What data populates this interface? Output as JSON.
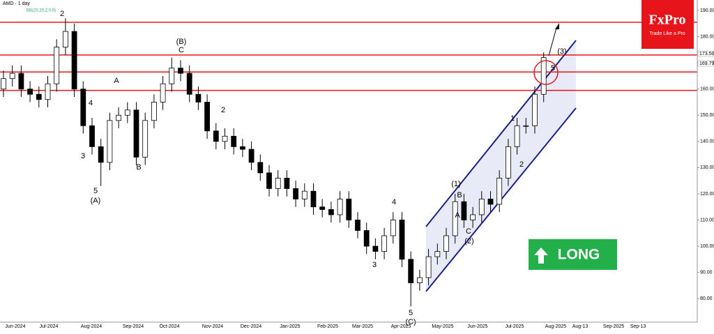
{
  "chart_data": {
    "type": "candlestick",
    "title": "AMD · 1 day",
    "indicator": "BB(20,20,2,0,0)",
    "open": [
      160,
      164,
      166,
      160,
      158,
      156,
      162,
      176,
      182,
      160,
      146,
      138,
      132,
      148,
      150,
      152,
      134,
      148,
      155,
      162,
      168,
      166,
      158,
      155,
      144,
      140,
      142,
      138,
      137,
      132,
      128,
      122,
      126,
      122,
      118,
      121,
      115,
      114,
      112,
      118,
      110,
      106,
      100,
      98,
      104,
      110,
      95,
      86,
      88,
      96,
      98,
      104,
      117,
      110,
      112,
      118,
      116,
      126,
      138,
      146,
      146,
      158
    ],
    "high": [
      167,
      169,
      169,
      163,
      161,
      165,
      179,
      187,
      185,
      163,
      149,
      141,
      151,
      153,
      155,
      155,
      151,
      158,
      165,
      172,
      171,
      169,
      161,
      158,
      147,
      145,
      145,
      141,
      140,
      135,
      131,
      129,
      129,
      125,
      124,
      124,
      118,
      117,
      121,
      121,
      113,
      109,
      103,
      107,
      113,
      113,
      98,
      91,
      99,
      101,
      107,
      120,
      120,
      115,
      121,
      121,
      129,
      141,
      149,
      149,
      161,
      174
    ],
    "low": [
      157,
      161,
      157,
      155,
      153,
      153,
      159,
      173,
      157,
      143,
      135,
      123,
      129,
      145,
      147,
      131,
      131,
      145,
      152,
      159,
      163,
      155,
      152,
      141,
      137,
      137,
      135,
      134,
      129,
      125,
      119,
      119,
      119,
      115,
      115,
      112,
      111,
      109,
      109,
      107,
      103,
      97,
      95,
      95,
      101,
      92,
      77,
      83,
      85,
      93,
      95,
      101,
      107,
      107,
      109,
      113,
      113,
      123,
      135,
      143,
      143,
      155
    ],
    "close": [
      164,
      166,
      160,
      158,
      156,
      162,
      176,
      182,
      160,
      146,
      138,
      132,
      148,
      150,
      152,
      134,
      148,
      155,
      162,
      168,
      166,
      158,
      155,
      144,
      140,
      142,
      138,
      137,
      132,
      128,
      122,
      126,
      122,
      118,
      121,
      115,
      114,
      112,
      118,
      110,
      106,
      100,
      98,
      104,
      110,
      95,
      86,
      88,
      96,
      98,
      104,
      117,
      110,
      112,
      118,
      116,
      126,
      138,
      146,
      146,
      158,
      172
    ],
    "up_color": "#ffffff",
    "down_color": "#000000",
    "ylim": [
      71,
      194
    ],
    "yticks": [
      {
        "value": 80,
        "label": "80.00"
      },
      {
        "value": 90,
        "label": "90.00"
      },
      {
        "value": 100,
        "label": "100.00"
      },
      {
        "value": 110,
        "label": "110.00"
      },
      {
        "value": 120,
        "label": "120.00"
      },
      {
        "value": 130,
        "label": "130.00"
      },
      {
        "value": 140,
        "label": "140.00"
      },
      {
        "value": 150,
        "label": "150.00"
      },
      {
        "value": 160,
        "label": "160.00"
      },
      {
        "value": 170,
        "label": "170.00"
      },
      {
        "value": 180,
        "label": "180.00"
      },
      {
        "value": 190,
        "label": "190.00"
      }
    ],
    "levels": [
      185.5,
      173,
      166.5,
      159.5
    ],
    "level_color": "#e8141c",
    "price_tags": [
      {
        "value": 173.5,
        "label": "173.50"
      },
      {
        "value": 169.79,
        "label": "169.79"
      }
    ],
    "xtick_labels": [
      "Jun-2024",
      "Jul-2024",
      "Aug-2024",
      "Sep-2024",
      "Oct-2024",
      "Nov-2024",
      "Dec-2024",
      "Jan-2025",
      "Feb-2025",
      "Mar-2025",
      "Apr-2025",
      "May-2025",
      "Jun-2025",
      "Jul-2025",
      "Aug-2025",
      "Aug-13",
      "Sep-2025",
      "Sep-13"
    ],
    "annotations": [
      "2",
      "(B)",
      "C",
      "A",
      "4",
      "3",
      "B",
      "5",
      "(A)",
      "2",
      "4",
      "3",
      "5",
      "(C)",
      "(1)",
      "B",
      "A",
      "C",
      "(2)",
      "1",
      "2",
      "(3)",
      "5"
    ]
  },
  "logo": "FxPro",
  "tagline": "Trade Like a Pro",
  "signal": "LONG"
}
